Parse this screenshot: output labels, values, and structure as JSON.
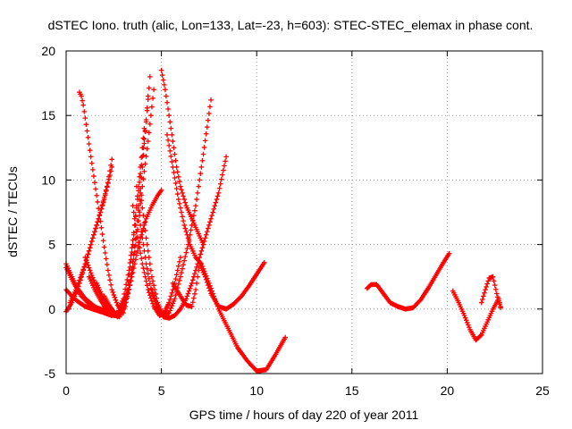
{
  "chart_data": {
    "type": "scatter",
    "title": "dSTEC Iono. truth (alic, Lon=133, Lat=-23, h=603): STEC-STEC_elemax in phase cont.",
    "xlabel": "GPS time / hours of day 220 of year 2011",
    "ylabel": "dSTEC  / TECUs",
    "xlim": [
      0,
      25
    ],
    "ylim": [
      -5,
      20
    ],
    "xticks": [
      0,
      5,
      10,
      15,
      20,
      25
    ],
    "yticks": [
      -5,
      0,
      5,
      10,
      15,
      20
    ],
    "grid": true,
    "marker": "+",
    "color": "#ff0000",
    "series": [
      {
        "x": [
          0.0,
          0.3,
          0.6,
          1.0,
          1.5,
          2.0,
          2.4
        ],
        "y": [
          3.5,
          2.5,
          1.6,
          0.8,
          0.2,
          -0.3,
          -0.5
        ]
      },
      {
        "x": [
          0.0,
          0.4,
          0.8,
          1.2,
          1.6,
          2.0,
          2.3
        ],
        "y": [
          3.2,
          2.0,
          1.0,
          0.4,
          0.1,
          -0.1,
          -0.2
        ]
      },
      {
        "x": [
          0.0,
          0.3,
          0.6,
          1.0,
          1.4,
          1.8,
          2.2
        ],
        "y": [
          1.5,
          1.0,
          0.6,
          0.2,
          0.0,
          -0.2,
          -0.3
        ]
      },
      {
        "x": [
          0.0,
          0.3,
          0.6,
          0.9,
          1.2,
          1.6,
          2.0,
          2.4
        ],
        "y": [
          -0.2,
          0.5,
          1.5,
          3.0,
          4.5,
          6.5,
          8.5,
          11.0
        ]
      },
      {
        "x": [
          0.2,
          0.6,
          1.0,
          1.4,
          1.8,
          2.2,
          2.4
        ],
        "y": [
          0.5,
          1.8,
          3.5,
          5.5,
          7.5,
          9.8,
          11.6
        ]
      },
      {
        "x": [
          0.7,
          0.8,
          0.9,
          1.0,
          1.2,
          1.4,
          1.6,
          1.8,
          2.0,
          2.2,
          2.4,
          2.7,
          3.0
        ],
        "y": [
          16.8,
          16.5,
          15.8,
          14.8,
          12.8,
          10.8,
          8.8,
          6.8,
          4.8,
          3.0,
          1.5,
          0.3,
          -0.3
        ]
      },
      {
        "x": [
          1.0,
          1.3,
          1.6,
          1.9,
          2.2,
          2.5,
          2.8,
          3.1,
          3.4,
          3.7,
          4.0,
          4.3
        ],
        "y": [
          4.0,
          2.8,
          1.7,
          0.8,
          0.1,
          -0.5,
          -0.5,
          0.5,
          2.5,
          6.0,
          11.0,
          16.5
        ]
      },
      {
        "x": [
          1.2,
          1.5,
          1.8,
          2.1,
          2.4,
          2.7,
          3.0,
          3.3,
          3.6,
          3.9,
          4.2,
          4.4
        ],
        "y": [
          2.5,
          1.5,
          0.7,
          0.0,
          -0.5,
          -0.3,
          0.8,
          3.0,
          6.5,
          10.5,
          14.5,
          18.0
        ]
      },
      {
        "x": [
          1.6,
          1.9,
          2.2,
          2.5,
          2.8,
          3.1,
          3.4,
          3.7,
          4.0,
          4.3,
          4.6
        ],
        "y": [
          2.0,
          1.0,
          0.2,
          -0.4,
          -0.6,
          0.2,
          2.2,
          5.5,
          9.5,
          13.0,
          17.0
        ]
      },
      {
        "x": [
          2.0,
          2.3,
          2.6,
          2.9,
          3.2,
          3.5,
          3.8,
          4.1
        ],
        "y": [
          1.0,
          0.2,
          -0.4,
          -0.2,
          1.5,
          5.0,
          9.5,
          14.0
        ]
      },
      {
        "x": [
          2.4,
          2.7,
          3.0,
          3.3,
          3.6,
          3.9,
          4.2,
          4.5,
          4.8,
          5.0
        ],
        "y": [
          -0.3,
          -0.6,
          0.0,
          1.5,
          3.5,
          5.5,
          7.0,
          8.0,
          8.8,
          9.2
        ]
      },
      {
        "x": [
          3.5,
          3.7,
          4.0,
          4.3,
          4.6,
          4.9,
          5.2,
          5.4
        ],
        "y": [
          8.0,
          6.0,
          3.5,
          1.5,
          0.2,
          -0.5,
          -0.3,
          0.5
        ]
      },
      {
        "x": [
          3.7,
          3.9,
          4.2,
          4.5,
          4.8,
          5.1,
          5.4,
          5.7,
          6.0
        ],
        "y": [
          9.5,
          6.5,
          3.5,
          1.2,
          0.0,
          -0.4,
          0.5,
          2.0,
          4.0
        ]
      },
      {
        "x": [
          3.9,
          4.2,
          4.5,
          4.8,
          5.1,
          5.4,
          5.7,
          6.0,
          6.4,
          6.8,
          7.2,
          7.6
        ],
        "y": [
          9.0,
          5.5,
          2.5,
          0.5,
          -0.5,
          -0.3,
          0.8,
          2.5,
          5.0,
          8.0,
          12.0,
          16.2
        ]
      },
      {
        "x": [
          4.5,
          4.8,
          5.1,
          5.4,
          5.7,
          6.0,
          6.3,
          6.6,
          6.9,
          7.2,
          7.6,
          8.0,
          8.4
        ],
        "y": [
          1.5,
          0.2,
          -0.6,
          -0.7,
          -0.5,
          0.0,
          0.8,
          2.0,
          3.5,
          5.0,
          7.0,
          9.0,
          11.8
        ]
      },
      {
        "x": [
          5.0,
          5.2,
          5.4,
          5.6,
          5.8,
          6.0,
          6.3,
          6.6,
          6.9,
          7.2
        ],
        "y": [
          18.5,
          17.0,
          15.0,
          13.0,
          11.0,
          9.5,
          8.0,
          7.0,
          6.0,
          5.0
        ]
      },
      {
        "x": [
          5.3,
          5.6,
          5.9,
          6.2,
          6.5,
          6.8,
          7.1,
          7.5,
          8.0,
          8.5,
          9.0,
          9.5,
          10.0,
          10.5,
          11.0,
          11.5
        ],
        "y": [
          13.5,
          11.0,
          8.5,
          6.5,
          5.0,
          4.0,
          3.5,
          2.0,
          0.0,
          -1.5,
          -3.0,
          -4.0,
          -4.8,
          -4.7,
          -3.5,
          -2.2
        ]
      },
      {
        "x": [
          5.6,
          6.0,
          6.3,
          6.6,
          6.8,
          7.0,
          7.3,
          7.6,
          8.0,
          8.4,
          8.8,
          9.2,
          9.6,
          10.0,
          10.4
        ],
        "y": [
          2.0,
          1.0,
          0.3,
          0.2,
          1.5,
          3.5,
          2.5,
          1.2,
          0.2,
          0.0,
          0.4,
          1.0,
          1.8,
          2.7,
          3.6
        ]
      },
      {
        "x": [
          15.8,
          16.0,
          16.3,
          16.6,
          17.0,
          17.4,
          17.8,
          18.2,
          18.6,
          19.0,
          19.4,
          19.8,
          20.1
        ],
        "y": [
          1.6,
          1.9,
          1.9,
          1.3,
          0.5,
          0.2,
          0.0,
          0.1,
          0.7,
          1.6,
          2.6,
          3.6,
          4.3
        ]
      },
      {
        "x": [
          20.3,
          20.6,
          20.9,
          21.2,
          21.5,
          21.8,
          22.1,
          22.4,
          22.7,
          22.8
        ],
        "y": [
          1.4,
          0.5,
          -0.5,
          -1.6,
          -2.4,
          -2.0,
          -1.0,
          0.0,
          0.8,
          0.2
        ]
      },
      {
        "x": [
          21.8,
          22.0,
          22.2,
          22.4,
          22.6,
          22.8
        ],
        "y": [
          0.5,
          1.5,
          2.4,
          2.5,
          1.2,
          0.1
        ]
      }
    ]
  }
}
